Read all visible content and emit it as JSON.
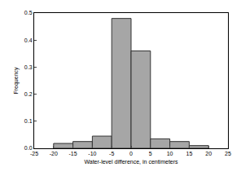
{
  "chart_data": {
    "type": "histogram",
    "xlabel": "Water-level difference, in centimeters",
    "ylabel": "Frequency",
    "bins": [
      -20,
      -15,
      -10,
      -5,
      0,
      5,
      10,
      15,
      20
    ],
    "values": [
      0.018,
      0.025,
      0.045,
      0.48,
      0.36,
      0.035,
      0.025,
      0.01
    ],
    "color": "#a6a6a6",
    "xlim": [
      -25,
      25
    ],
    "xticks": [
      -25,
      -20,
      -15,
      -10,
      -5,
      0,
      5,
      10,
      15,
      20,
      25
    ],
    "ylim": [
      0,
      0.5
    ],
    "yticks": [
      {
        "value": 0,
        "label": "0.0"
      },
      0.1,
      0.2,
      0.3,
      0.4,
      0.5
    ],
    "grid": false
  }
}
